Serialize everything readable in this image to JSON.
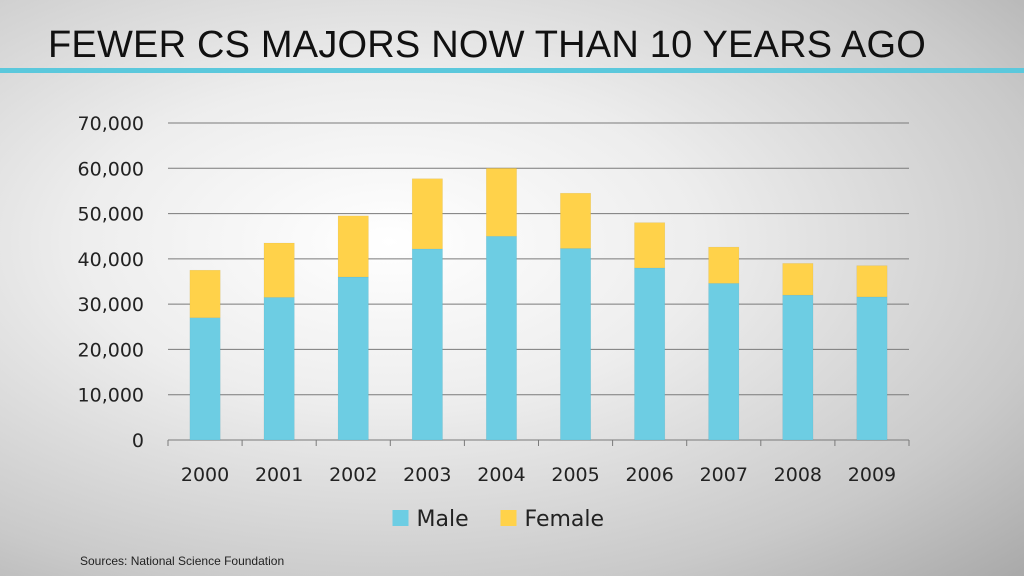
{
  "slide": {
    "title": "FEWER CS MAJORS NOW THAN 10 YEARS AGO",
    "source": "Sources: National Science Foundation",
    "accent_color": "#5bc8dc"
  },
  "chart_data": {
    "type": "bar",
    "stacked": true,
    "categories": [
      "2000",
      "2001",
      "2002",
      "2003",
      "2004",
      "2005",
      "2006",
      "2007",
      "2008",
      "2009"
    ],
    "series": [
      {
        "name": "Male",
        "color": "#6dcde3",
        "values": [
          27000,
          31500,
          36000,
          42200,
          45000,
          42300,
          38000,
          34600,
          32000,
          31600
        ]
      },
      {
        "name": "Female",
        "color": "#ffd24a",
        "values": [
          10500,
          12000,
          13500,
          15500,
          15000,
          12200,
          10000,
          8000,
          7000,
          6900
        ]
      }
    ],
    "ylim": [
      0,
      70000
    ],
    "yticks": [
      0,
      10000,
      20000,
      30000,
      40000,
      50000,
      60000,
      70000
    ],
    "ytick_labels": [
      "0",
      "10,000",
      "20,000",
      "30,000",
      "40,000",
      "50,000",
      "60,000",
      "70,000"
    ],
    "grid": true,
    "legend_position": "bottom"
  }
}
